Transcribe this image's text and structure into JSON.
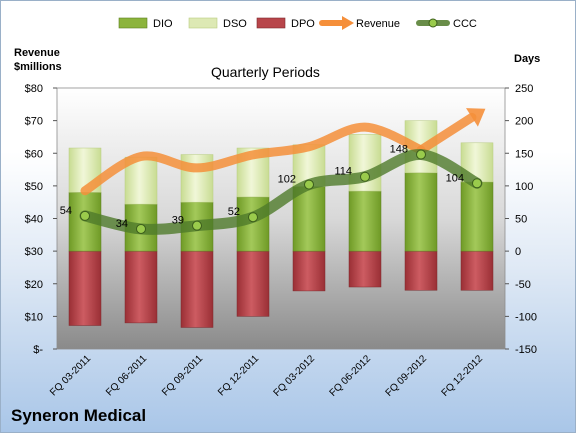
{
  "chart_data": {
    "type": "bar",
    "title": "Quarterly Periods",
    "ylabel_left": [
      "Revenue",
      "$millions"
    ],
    "ylabel_right": "Days",
    "ylim_left": [
      0,
      80
    ],
    "ylim_right": [
      -150,
      250
    ],
    "y_left_ticks": [
      "$-",
      "$10",
      "$20",
      "$30",
      "$40",
      "$50",
      "$60",
      "$70",
      "$80"
    ],
    "y_right_ticks": [
      "-150",
      "-100",
      "-50",
      "0",
      "50",
      "100",
      "150",
      "200",
      "250"
    ],
    "categories": [
      "FQ 03-2011",
      "FQ 06-2011",
      "FQ 09-2011",
      "FQ 12-2011",
      "FQ 03-2012",
      "FQ 06-2012",
      "FQ 09-2012",
      "FQ 12-2012"
    ],
    "series": [
      {
        "name": "DIO",
        "type": "stacked-bar",
        "axis": "right",
        "color": "#8cb43c",
        "values": [
          90,
          72,
          75,
          83,
          99,
          92,
          120,
          106
        ]
      },
      {
        "name": "DSO",
        "type": "stacked-bar",
        "axis": "right",
        "color": "#dde9b4",
        "values": [
          68,
          72,
          73,
          75,
          64,
          87,
          80,
          60
        ]
      },
      {
        "name": "DPO",
        "type": "stacked-bar",
        "axis": "right",
        "color": "#b8454a",
        "values": [
          -114,
          -110,
          -117,
          -100,
          -61,
          -55,
          -60,
          -60
        ]
      },
      {
        "name": "Revenue",
        "type": "line",
        "axis": "left",
        "color": "#f58f3a",
        "values": [
          48.5,
          59,
          55.5,
          59.5,
          62,
          68,
          61,
          72
        ]
      },
      {
        "name": "CCC",
        "type": "line",
        "axis": "right",
        "color": "#4f7a2a",
        "values": [
          54,
          34,
          39,
          52,
          102,
          114,
          148,
          104
        ],
        "data_labels": [
          "54",
          "34",
          "39",
          "52",
          "102",
          "114",
          "148",
          "104"
        ]
      }
    ],
    "legend_position": "top",
    "grid": false
  },
  "footer": {
    "company": "Syneron Medical"
  }
}
